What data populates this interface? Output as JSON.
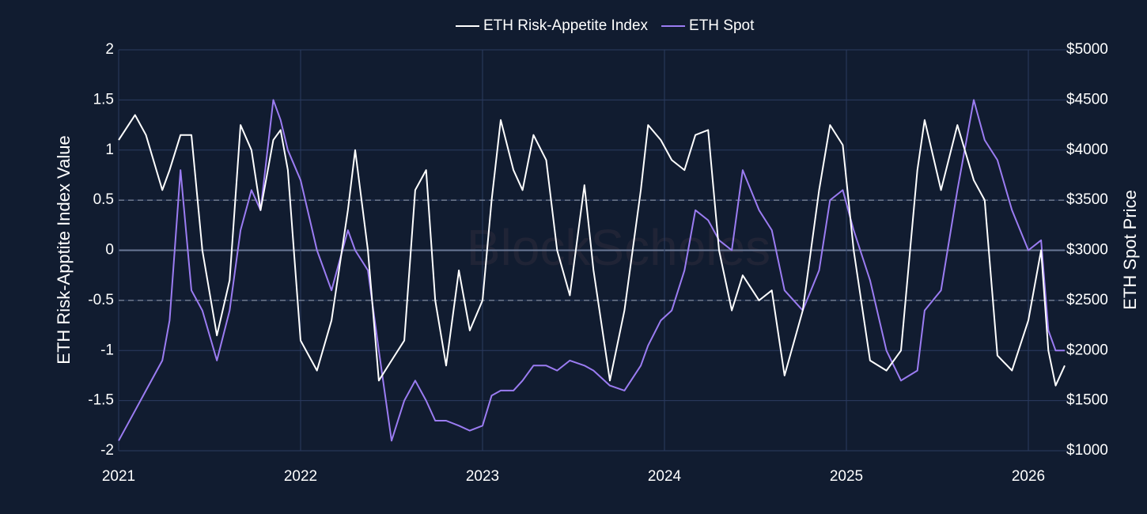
{
  "chart_data": {
    "type": "line",
    "legend": {
      "position": "top-center"
    },
    "watermark": "BlockScholes",
    "x_is_year": true,
    "xlim": [
      2021,
      2026.2
    ],
    "xticks": [
      2021,
      2022,
      2023,
      2024,
      2025,
      2026
    ],
    "ylim": [
      -2,
      2
    ],
    "yticks": [
      -2,
      -1.5,
      -1,
      -0.5,
      0,
      0.5,
      1,
      1.5,
      2
    ],
    "y2lim": [
      1000,
      5000
    ],
    "y2ticks": [
      {
        "value": 1000,
        "label": "$1000"
      },
      {
        "value": 1500,
        "label": "$1500"
      },
      {
        "value": 2000,
        "label": "$2000"
      },
      {
        "value": 2500,
        "label": "$2500"
      },
      {
        "value": 3000,
        "label": "$3000"
      },
      {
        "value": 3500,
        "label": "$3500"
      },
      {
        "value": 4000,
        "label": "$4000"
      },
      {
        "value": 4500,
        "label": "$4500"
      },
      {
        "value": 5000,
        "label": "$5000"
      }
    ],
    "dashed_lines": [
      0.5,
      -0.5
    ],
    "grid": true,
    "ylabel": "ETH Risk-Apptite Index Value",
    "y2label": "ETH Spot Price",
    "x": [
      2021.0,
      2021.09,
      2021.15,
      2021.24,
      2021.28,
      2021.34,
      2021.4,
      2021.46,
      2021.54,
      2021.61,
      2021.67,
      2021.73,
      2021.78,
      2021.85,
      2021.89,
      2021.93,
      2022.0,
      2022.09,
      2022.17,
      2022.26,
      2022.3,
      2022.37,
      2022.43,
      2022.5,
      2022.57,
      2022.63,
      2022.69,
      2022.74,
      2022.8,
      2022.87,
      2022.93,
      2023.0,
      2023.05,
      2023.1,
      2023.17,
      2023.22,
      2023.28,
      2023.35,
      2023.41,
      2023.48,
      2023.56,
      2023.61,
      2023.7,
      2023.78,
      2023.87,
      2023.91,
      2023.98,
      2024.04,
      2024.11,
      2024.17,
      2024.24,
      2024.3,
      2024.37,
      2024.43,
      2024.52,
      2024.59,
      2024.66,
      2024.76,
      2024.85,
      2024.91,
      2024.98,
      2025.04,
      2025.13,
      2025.22,
      2025.3,
      2025.39,
      2025.43,
      2025.52,
      2025.61,
      2025.7,
      2025.76,
      2025.83,
      2025.91,
      2026.0,
      2026.07,
      2026.11,
      2026.15,
      2026.2
    ],
    "series": [
      {
        "name": "ETH Risk-Appetite Index",
        "color": "#ffffff",
        "axis": "y",
        "values": [
          1.1,
          1.35,
          1.15,
          0.6,
          0.8,
          1.15,
          1.15,
          0.0,
          -0.85,
          -0.3,
          1.25,
          1.0,
          0.4,
          1.1,
          1.2,
          0.8,
          -0.9,
          -1.2,
          -0.7,
          0.4,
          1.0,
          0.0,
          -1.3,
          -1.1,
          -0.9,
          0.6,
          0.8,
          -0.5,
          -1.15,
          -0.2,
          -0.8,
          -0.5,
          0.5,
          1.3,
          0.8,
          0.6,
          1.15,
          0.9,
          0.0,
          -0.45,
          0.65,
          -0.2,
          -1.3,
          -0.6,
          0.6,
          1.25,
          1.1,
          0.9,
          0.8,
          1.15,
          1.2,
          0.0,
          -0.6,
          -0.25,
          -0.5,
          -0.4,
          -1.25,
          -0.6,
          0.6,
          1.25,
          1.05,
          0.0,
          -1.1,
          -1.2,
          -1.0,
          0.8,
          1.3,
          0.6,
          1.25,
          0.7,
          0.5,
          -1.05,
          -1.2,
          -0.7,
          0.0,
          -1.0,
          -1.35,
          -1.15
        ]
      },
      {
        "name": "ETH Spot",
        "color": "#9b7cf2",
        "axis": "y2",
        "values": [
          1100,
          1400,
          1600,
          1900,
          2300,
          3800,
          2600,
          2400,
          1900,
          2400,
          3200,
          3600,
          3400,
          4500,
          4300,
          4000,
          3700,
          3000,
          2600,
          3200,
          3000,
          2800,
          2000,
          1100,
          1500,
          1700,
          1500,
          1300,
          1300,
          1250,
          1200,
          1250,
          1550,
          1600,
          1600,
          1700,
          1850,
          1850,
          1800,
          1900,
          1850,
          1800,
          1650,
          1600,
          1850,
          2050,
          2300,
          2400,
          2800,
          3400,
          3300,
          3100,
          3000,
          3800,
          3400,
          3200,
          2600,
          2400,
          2800,
          3500,
          3600,
          3200,
          2700,
          2000,
          1700,
          1800,
          2400,
          2600,
          3600,
          4500,
          4100,
          3900,
          3400,
          3000,
          3100,
          2200,
          2000,
          2000
        ]
      }
    ]
  }
}
